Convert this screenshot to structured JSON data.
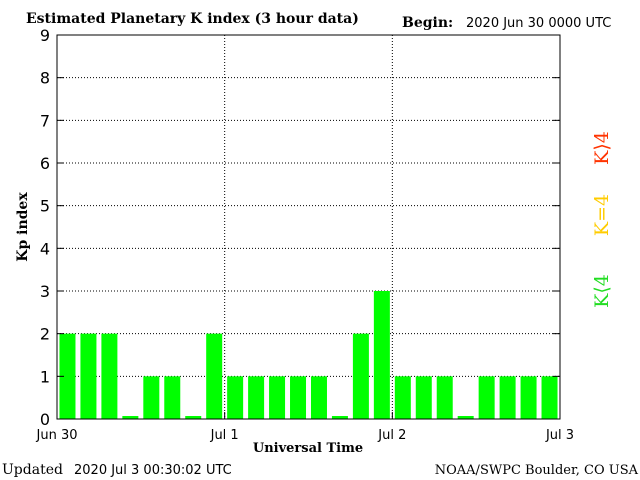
{
  "header": {
    "title": "Estimated Planetary K index (3 hour data)",
    "begin_label": "Begin:",
    "begin_value": "2020 Jun 30 0000 UTC"
  },
  "footer": {
    "updated_label": "Updated",
    "updated_value": "2020 Jul  3 00:30:02 UTC",
    "source": "NOAA/SWPC Boulder, CO USA"
  },
  "legend": {
    "low": {
      "text": "K⟨4",
      "color": "#22dd22"
    },
    "mid": {
      "text": "K=4",
      "color": "#ffcc00"
    },
    "high": {
      "text": "K⟩4",
      "color": "#ff3300"
    }
  },
  "chart_data": {
    "type": "bar",
    "xlabel": "Universal Time",
    "ylabel": "Kp index",
    "ylim": [
      0,
      9
    ],
    "yticks": [
      0,
      1,
      2,
      3,
      4,
      5,
      6,
      7,
      8,
      9
    ],
    "grid": true,
    "x_tick_labels": [
      "Jun 30",
      "Jul 1",
      "Jul 2",
      "Jul 3"
    ],
    "bar_color": "#00ff00",
    "values": [
      2,
      2,
      2,
      0,
      1,
      1,
      0,
      2,
      1,
      1,
      1,
      1,
      1,
      0,
      2,
      3,
      1,
      1,
      1,
      0,
      1,
      1,
      1,
      1
    ]
  }
}
